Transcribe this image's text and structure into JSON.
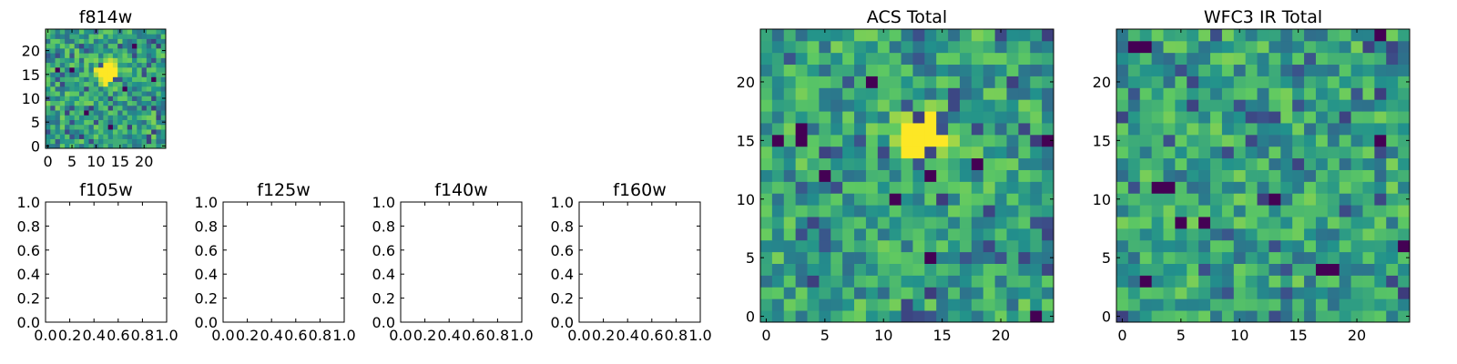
{
  "colormap": [
    "#440154",
    "#3b528b",
    "#21918c",
    "#5ec962",
    "#fde725"
  ],
  "chart_data": [
    {
      "id": "f814w",
      "type": "heatmap",
      "title": "f814w",
      "grid_size": 25,
      "xlim": [
        -0.5,
        24.5
      ],
      "ylim": [
        -0.5,
        24.5
      ],
      "xticks": [
        0,
        5,
        10,
        15,
        20
      ],
      "yticks": [
        0,
        5,
        10,
        15,
        20
      ],
      "xtick_labels": [
        "0",
        "5",
        "10",
        "15",
        "20"
      ],
      "ytick_labels": [
        "0",
        "5",
        "10",
        "15",
        "20"
      ],
      "source": {
        "x": 12.5,
        "y": 15.5,
        "sigma": 1.3,
        "amplitude": 1.4
      },
      "seed": 814,
      "low_pixels": [
        [
          2,
          16
        ],
        [
          5,
          16
        ],
        [
          16,
          12
        ],
        [
          18,
          21
        ],
        [
          13,
          4
        ],
        [
          22,
          14
        ],
        [
          8,
          7
        ]
      ]
    },
    {
      "id": "f105w",
      "type": "heatmap",
      "title": "f105w",
      "empty": true,
      "xlim": [
        0,
        1
      ],
      "ylim": [
        0,
        1
      ],
      "xticks": [
        0,
        0.2,
        0.4,
        0.6,
        0.8,
        1.0
      ],
      "yticks": [
        0,
        0.2,
        0.4,
        0.6,
        0.8,
        1.0
      ],
      "xtick_labels": [
        "0.0",
        "0.2",
        "0.4",
        "0.6",
        "0.8",
        "1.0"
      ],
      "ytick_labels": [
        "0.0",
        "0.2",
        "0.4",
        "0.6",
        "0.8",
        "1.0"
      ]
    },
    {
      "id": "f125w",
      "type": "heatmap",
      "title": "f125w",
      "empty": true,
      "xlim": [
        0,
        1
      ],
      "ylim": [
        0,
        1
      ],
      "xticks": [
        0,
        0.2,
        0.4,
        0.6,
        0.8,
        1.0
      ],
      "yticks": [
        0,
        0.2,
        0.4,
        0.6,
        0.8,
        1.0
      ],
      "xtick_labels": [
        "0.0",
        "0.2",
        "0.4",
        "0.6",
        "0.8",
        "1.0"
      ],
      "ytick_labels": [
        "0.0",
        "0.2",
        "0.4",
        "0.6",
        "0.8",
        "1.0"
      ]
    },
    {
      "id": "f140w",
      "type": "heatmap",
      "title": "f140w",
      "empty": true,
      "xlim": [
        0,
        1
      ],
      "ylim": [
        0,
        1
      ],
      "xticks": [
        0,
        0.2,
        0.4,
        0.6,
        0.8,
        1.0
      ],
      "yticks": [
        0,
        0.2,
        0.4,
        0.6,
        0.8,
        1.0
      ],
      "xtick_labels": [
        "0.0",
        "0.2",
        "0.4",
        "0.6",
        "0.8",
        "1.0"
      ],
      "ytick_labels": [
        "0.0",
        "0.2",
        "0.4",
        "0.6",
        "0.8",
        "1.0"
      ]
    },
    {
      "id": "f160w",
      "type": "heatmap",
      "title": "f160w",
      "empty": true,
      "xlim": [
        0,
        1
      ],
      "ylim": [
        0,
        1
      ],
      "xticks": [
        0,
        0.2,
        0.4,
        0.6,
        0.8,
        1.0
      ],
      "yticks": [
        0,
        0.2,
        0.4,
        0.6,
        0.8,
        1.0
      ],
      "xtick_labels": [
        "0.0",
        "0.2",
        "0.4",
        "0.6",
        "0.8",
        "1.0"
      ],
      "ytick_labels": [
        "0.0",
        "0.2",
        "0.4",
        "0.6",
        "0.8",
        "1.0"
      ]
    },
    {
      "id": "acs-total",
      "type": "heatmap",
      "title": "ACS Total",
      "grid_size": 25,
      "xlim": [
        -0.5,
        24.5
      ],
      "ylim": [
        -0.5,
        24.5
      ],
      "xticks": [
        0,
        5,
        10,
        15,
        20
      ],
      "yticks": [
        0,
        5,
        10,
        15,
        20
      ],
      "xtick_labels": [
        "0",
        "5",
        "10",
        "15",
        "20"
      ],
      "ytick_labels": [
        "0",
        "5",
        "10",
        "15",
        "20"
      ],
      "source": {
        "x": 13,
        "y": 15.3,
        "sigma": 1.2,
        "amplitude": 1.4
      },
      "seed": 2025,
      "low_pixels": [
        [
          9,
          20
        ],
        [
          1,
          15
        ],
        [
          3,
          15
        ],
        [
          3,
          16
        ],
        [
          18,
          13
        ],
        [
          14,
          12
        ],
        [
          5,
          12
        ],
        [
          11,
          10
        ],
        [
          14,
          5
        ],
        [
          24,
          15
        ],
        [
          23,
          0
        ]
      ]
    },
    {
      "id": "wfc3-ir-total",
      "type": "heatmap",
      "title": "WFC3 IR Total",
      "grid_size": 25,
      "xlim": [
        -0.5,
        24.5
      ],
      "ylim": [
        -0.5,
        24.5
      ],
      "xticks": [
        0,
        5,
        10,
        15,
        20
      ],
      "yticks": [
        0,
        5,
        10,
        15,
        20
      ],
      "xtick_labels": [
        "0",
        "5",
        "10",
        "15",
        "20"
      ],
      "ytick_labels": [
        "0",
        "5",
        "10",
        "15",
        "20"
      ],
      "source": null,
      "seed": 777,
      "low_pixels": [
        [
          1,
          23
        ],
        [
          2,
          23
        ],
        [
          3,
          11
        ],
        [
          4,
          11
        ],
        [
          5,
          8
        ],
        [
          7,
          8
        ],
        [
          13,
          10
        ],
        [
          17,
          4
        ],
        [
          18,
          4
        ],
        [
          22,
          15
        ],
        [
          24,
          6
        ],
        [
          22,
          24
        ],
        [
          2,
          3
        ]
      ]
    }
  ]
}
